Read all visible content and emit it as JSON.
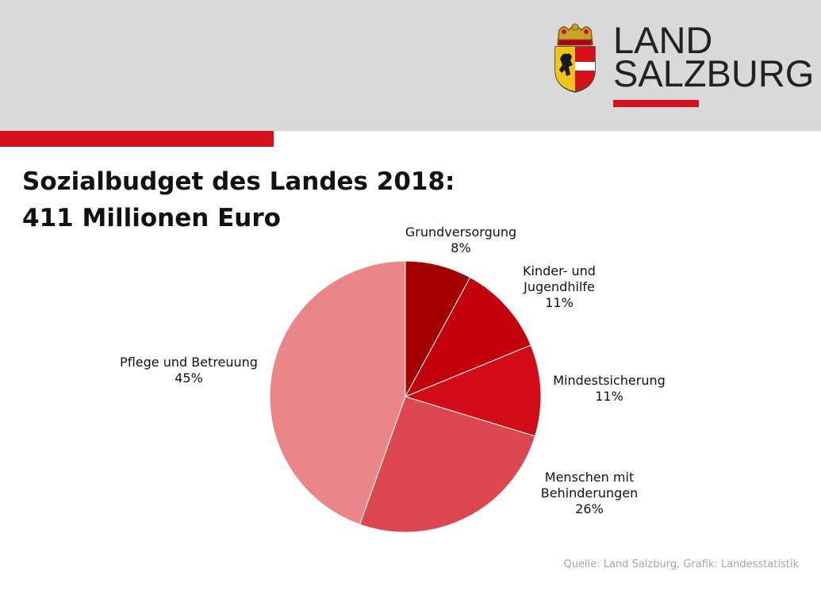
{
  "colors": {
    "header_bg": "#d9d9d9",
    "accent_red": "#d5101b",
    "title_text": "#111111",
    "source_text": "#a6a6a6"
  },
  "logo": {
    "line1": "LAND",
    "line2": "SALZBURG",
    "crest_icon": "salzburg-coat-of-arms-icon"
  },
  "title": {
    "line1": "Sozialbudget des Landes 2018:",
    "line2": "411 Millionen Euro"
  },
  "chart_data": {
    "type": "pie",
    "categories": [
      "Grundversorgung",
      "Kinder- und Jugendhilfe",
      "Mindestsicherung",
      "Menschen mit Behinderungen",
      "Pflege und Betreuung"
    ],
    "values": [
      8,
      11,
      11,
      26,
      45
    ],
    "unit": "%",
    "slices": [
      {
        "label_lines": [
          "Grundversorgung"
        ],
        "value_label": "8%",
        "color": "#a40000"
      },
      {
        "label_lines": [
          "Kinder- und",
          "Jugendhilfe"
        ],
        "value_label": "11%",
        "color": "#c1000c"
      },
      {
        "label_lines": [
          "Mindestsicherung"
        ],
        "value_label": "11%",
        "color": "#d20c16"
      },
      {
        "label_lines": [
          "Menschen mit",
          "Behinderungen"
        ],
        "value_label": "26%",
        "color": "#dd4850"
      },
      {
        "label_lines": [
          "Pflege und Betreuung"
        ],
        "value_label": "45%",
        "color": "#e88689"
      }
    ],
    "start_angle": "12 o'clock",
    "direction": "clockwise",
    "legend": "none"
  },
  "source": "Quelle: Land Salzburg, Grafik: Landesstatistik"
}
